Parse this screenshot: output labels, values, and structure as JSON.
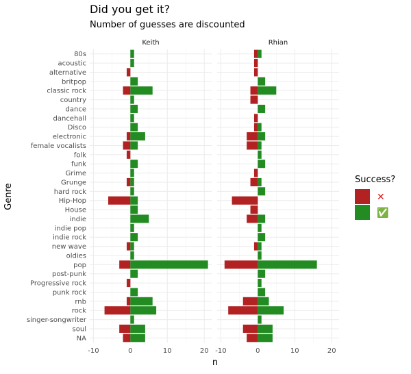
{
  "chart_data": {
    "type": "bar",
    "orientation": "horizontal",
    "title": "Did you get it?",
    "subtitle": "Number of guesses are discounted",
    "xlabel": "n",
    "ylabel": "Genre",
    "xlim": [
      -11,
      22
    ],
    "xticks": [
      -10,
      0,
      10,
      20
    ],
    "xtick_labels": [
      "-10",
      "0",
      "10",
      "20"
    ],
    "legend": {
      "title": "Success?",
      "position": "right",
      "entries": [
        {
          "symbol": "✕",
          "color": "#b22222"
        },
        {
          "symbol": "✅",
          "color": "#228b22"
        }
      ]
    },
    "colors": {
      "fail": "#b22222",
      "success": "#228b22"
    },
    "categories": [
      "80s",
      "acoustic",
      "alternative",
      "britpop",
      "classic rock",
      "country",
      "dance",
      "dancehall",
      "Disco",
      "electronic",
      "female vocalists",
      "folk",
      "funk",
      "Grime",
      "Grunge",
      "hard rock",
      "Hip-Hop",
      "House",
      "indie",
      "indie pop",
      "indie rock",
      "new wave",
      "oldies",
      "pop",
      "post-punk",
      "Progressive rock",
      "punk rock",
      "rnb",
      "rock",
      "singer-songwriter",
      "soul",
      "NA"
    ],
    "panels": [
      {
        "name": "Keith",
        "series": [
          {
            "key": "fail",
            "values": [
              0,
              0,
              -1,
              0,
              -2,
              0,
              0,
              0,
              0,
              -1,
              -2,
              -1,
              0,
              0,
              -1,
              0,
              -6,
              0,
              0,
              0,
              0,
              -1,
              0,
              -3,
              0,
              -1,
              0,
              -1,
              -7,
              0,
              -3,
              -2
            ]
          },
          {
            "key": "success",
            "values": [
              1,
              1,
              0,
              2,
              6,
              1,
              2,
              1,
              2,
              4,
              2,
              0,
              2,
              1,
              1,
              1,
              2,
              2,
              5,
              1,
              2,
              1,
              1,
              21,
              2,
              0,
              2,
              6,
              7,
              1,
              4,
              4
            ]
          }
        ]
      },
      {
        "name": "Rhian",
        "series": [
          {
            "key": "fail",
            "values": [
              -1,
              -1,
              -1,
              0,
              -2,
              -2,
              0,
              -1,
              -1,
              -3,
              -3,
              0,
              0,
              -1,
              -2,
              0,
              -7,
              -2,
              -3,
              0,
              0,
              -1,
              0,
              -9,
              0,
              0,
              0,
              -4,
              -8,
              0,
              -4,
              -3
            ]
          },
          {
            "key": "success",
            "values": [
              1,
              0,
              0,
              2,
              5,
              0,
              2,
              0,
              1,
              2,
              1,
              1,
              2,
              0,
              1,
              2,
              0,
              0,
              2,
              1,
              2,
              1,
              1,
              16,
              2,
              1,
              2,
              3,
              7,
              1,
              4,
              4
            ]
          }
        ]
      }
    ]
  }
}
